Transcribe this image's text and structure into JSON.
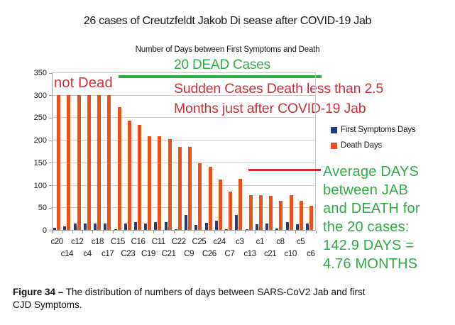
{
  "title": "26 cases of Creutzfeldt Jakob Di sease after COVID-19 Jab",
  "subtitle": "Number of Days between First Symptoms and Death",
  "annotations": {
    "dead_cases": "20 DEAD Cases",
    "not_dead": "not Dead",
    "sudden_lines": [
      "Sudden Cases Death less than 2.5",
      "Months just after COVID-19 Jab"
    ],
    "average_lines": [
      "Average DAYS",
      "between JAB",
      "and DEATH for",
      "the 20 cases:",
      "142.9 DAYS =",
      "4.76 MONTHS"
    ]
  },
  "legend": [
    {
      "label": "First Symptoms Days",
      "color": "#1f4077"
    },
    {
      "label": "Death Days",
      "color": "#e8531d"
    }
  ],
  "colors": {
    "green": "#2eac44",
    "red": "#cc2f36",
    "symptoms_blue": "#1f4077",
    "death_orange": "#e8531d"
  },
  "caption": {
    "label": "Figure 34 –",
    "text": " The distribution of numbers of days between SARS-CoV2 Jab and first CJD Symptoms."
  },
  "chart_data": {
    "type": "bar",
    "title": "26 cases of Creutzfeldt Jakob Di sease after COVID-19 Jab",
    "subtitle": "Number of Days between First Symptoms and Death",
    "categories": [
      "c20",
      "c14",
      "c12",
      "c4",
      "c18",
      "c17",
      "C15",
      "C23",
      "C16",
      "C19",
      "C11",
      "C21",
      "C22",
      "C9",
      "C25",
      "C26",
      "c24",
      "C7",
      "c3",
      "c13",
      "c1",
      "c21",
      "c8",
      "c10",
      "c5",
      "c6"
    ],
    "series": [
      {
        "name": "First Symptoms Days",
        "color": "#1f4077",
        "values": [
          5,
          8,
          14,
          15,
          15,
          15,
          2,
          15,
          17,
          15,
          17,
          17,
          2,
          33,
          11,
          16,
          21,
          2,
          33,
          2,
          12,
          15,
          3,
          18,
          12,
          15
        ]
      },
      {
        "name": "Death Days",
        "color": "#e8531d",
        "values": [
          300,
          300,
          300,
          300,
          300,
          300,
          273,
          243,
          233,
          208,
          208,
          202,
          185,
          185,
          148,
          140,
          112,
          85,
          114,
          78,
          78,
          76,
          64,
          78,
          65,
          54
        ]
      }
    ],
    "ylim": [
      0,
      350
    ],
    "yticks": [
      0,
      50,
      100,
      150,
      200,
      250,
      300,
      350
    ],
    "grid": true,
    "legend_position": "right",
    "notes": "First 6 cases labeled 'not Dead' (bars capped at 300); remaining 20 under green '20 DEAD Cases' bracket; average days between jab and death for the 20 cases = 142.9 days = 4.76 months"
  }
}
